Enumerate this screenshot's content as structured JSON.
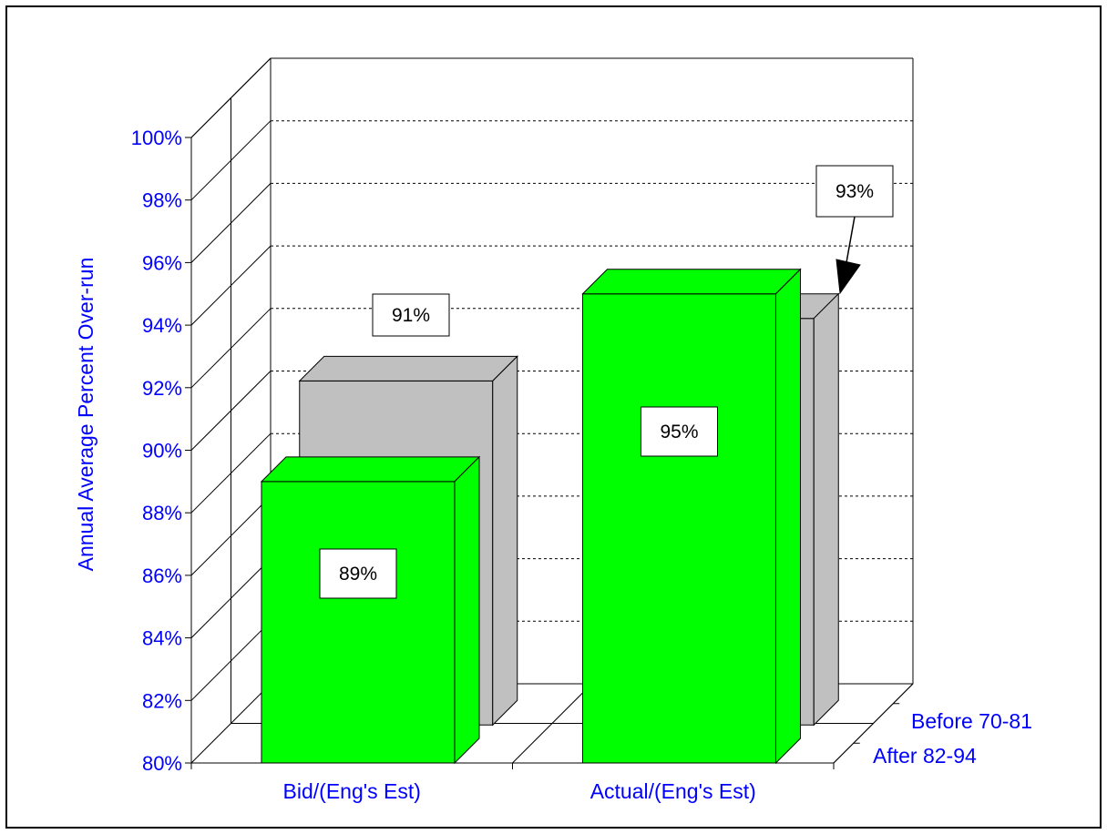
{
  "chart_data": {
    "type": "bar",
    "title": "",
    "xlabel": "",
    "ylabel": "Annual Average Percent Over-run",
    "ylim": [
      80,
      100
    ],
    "y_ticks": [
      "80%",
      "82%",
      "84%",
      "86%",
      "88%",
      "90%",
      "92%",
      "94%",
      "96%",
      "98%",
      "100%"
    ],
    "categories": [
      "Bid/(Eng's Est)",
      "Actual/(Eng's Est)"
    ],
    "series": [
      {
        "name": "After 82-94",
        "values": [
          89,
          95
        ],
        "labels": [
          "89%",
          "95%"
        ],
        "color": "#00ff00"
      },
      {
        "name": "Before 70-81",
        "values": [
          91,
          93
        ],
        "labels": [
          "91%",
          "93%"
        ],
        "color": "#c0c0c0"
      }
    ],
    "grid": true,
    "three_d": true,
    "text_color": "#0000ff"
  }
}
